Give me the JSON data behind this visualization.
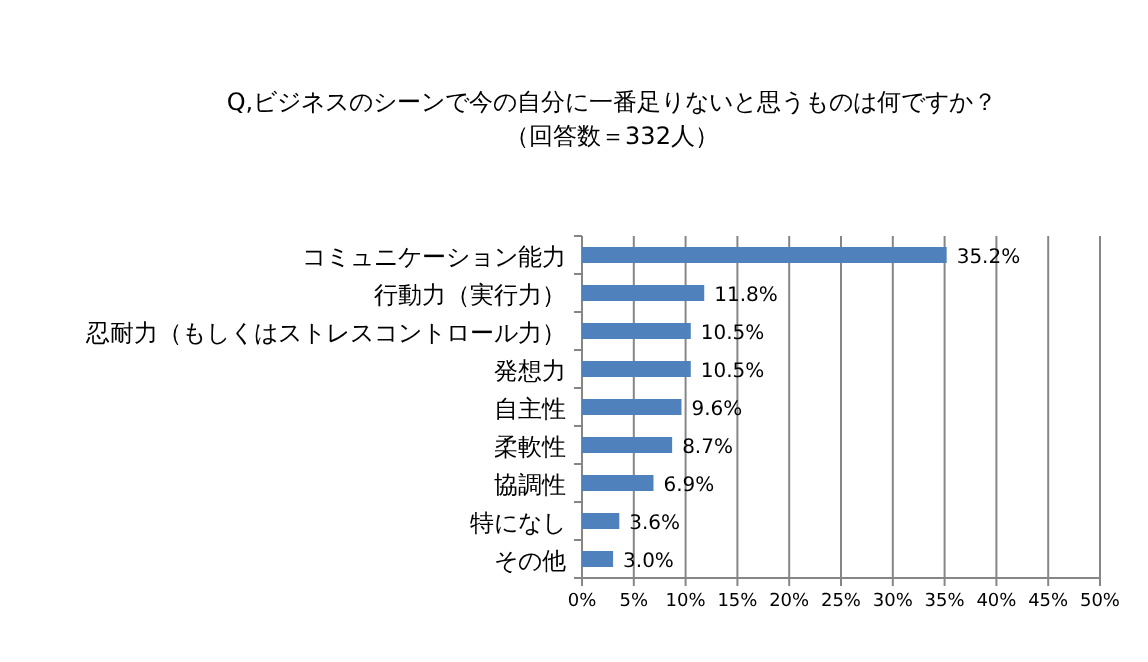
{
  "chart_data": {
    "type": "bar",
    "orientation": "horizontal",
    "title": "Q,ビジネスのシーンで今の自分に一番足りないと思うものは何ですか？",
    "subtitle": "（回答数＝332人）",
    "categories": [
      "コミュニケーション能力",
      "行動力（実行力）",
      "忍耐力（もしくはストレスコントロール力）",
      "発想力",
      "自主性",
      "柔軟性",
      "協調性",
      "特になし",
      "その他"
    ],
    "values": [
      35.2,
      11.8,
      10.5,
      10.5,
      9.6,
      8.7,
      6.9,
      3.6,
      3.0
    ],
    "value_labels": [
      "35.2%",
      "11.8%",
      "10.5%",
      "10.5%",
      "9.6%",
      "8.7%",
      "6.9%",
      "3.6%",
      "3.0%"
    ],
    "color": "#4f81bd",
    "xlim": [
      0,
      50
    ],
    "xticks": [
      {
        "value": 0,
        "label": "0%"
      },
      {
        "value": 5,
        "label": "5%"
      },
      {
        "value": 10,
        "label": "10%"
      },
      {
        "value": 15,
        "label": "15%"
      },
      {
        "value": 20,
        "label": "20%"
      },
      {
        "value": 25,
        "label": "25%"
      },
      {
        "value": 30,
        "label": "30%"
      },
      {
        "value": 35,
        "label": "35%"
      },
      {
        "value": 40,
        "label": "40%"
      },
      {
        "value": 45,
        "label": "45%"
      },
      {
        "value": 50,
        "label": "50%"
      }
    ],
    "grid": "x"
  }
}
